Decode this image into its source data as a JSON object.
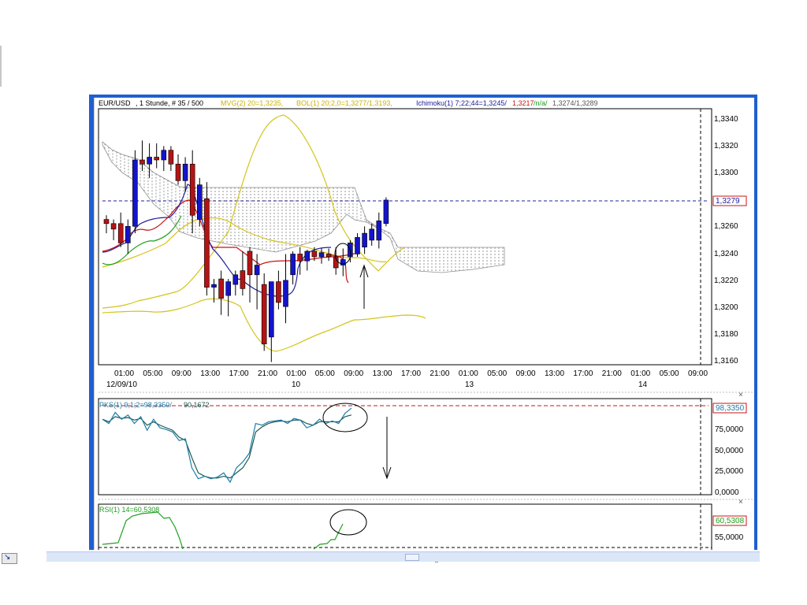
{
  "main_header": {
    "symbol": "EUR/USD",
    "timeframe": ", 1 Stunde, # 35 / 500",
    "mvg": "MVG(2) 20=1,3235,",
    "bol": "BOL(1) 20;2,0=1,3277/1,3193,",
    "ichi_a": "Ichimoku(1) 7;22;44=1,3245/",
    "ichi_b": "1,3217",
    "ichi_c": "/n/a/",
    "ichi_d": "1,3274/1,3289"
  },
  "main_axis": {
    "ticks": [
      "1,3340",
      "1,3320",
      "1,3300",
      "1,3280",
      "1,3260",
      "1,3240",
      "1,3220",
      "1,3200",
      "1,3180",
      "1,3160"
    ],
    "current_price": "1,3279"
  },
  "time_axis": {
    "labels": [
      "01:00",
      "05:00",
      "09:00",
      "13:00",
      "17:00",
      "21:00",
      "01:00",
      "05:00",
      "09:00",
      "13:00",
      "17:00",
      "21:00",
      "01:00",
      "05:00",
      "09:00",
      "13:00",
      "17:00",
      "21:00",
      "01:00",
      "05:00",
      "09:00"
    ],
    "dates": [
      "12/09/10",
      "10",
      "13",
      "14"
    ]
  },
  "pks_panel": {
    "label": "PKS(1) 9;1;2=98,3350/",
    "label_b": "90,1672",
    "ticks": [
      "75,0000",
      "50,0000",
      "25,0000",
      "0,0000"
    ],
    "current": "98,3350"
  },
  "rsi_panel": {
    "label": "RSI(1) 14=60,5308",
    "ticks": [
      "55,0000"
    ],
    "current": "60,5308"
  },
  "colors": {
    "frame": "#1f5fd0",
    "bull": "#1414c8",
    "bear": "#b41414",
    "bollinger": "#d4c41c",
    "ichimoku_cloud": "#909090",
    "tenkan": "#2020a0",
    "kijun": "#c81414",
    "chikou": "#20a020",
    "pks_fast": "#1e7ea8",
    "pks_slow": "#1e5a50",
    "rsi": "#20a020"
  },
  "chart_data": {
    "type": "candlestick",
    "instrument": "EUR/USD",
    "timeframe": "1 Stunde",
    "ylim": [
      1.316,
      1.3345
    ],
    "candles_ohlc": [
      [
        1.3265,
        1.3268,
        1.3255,
        1.3262
      ],
      [
        1.3262,
        1.3265,
        1.325,
        1.3258
      ],
      [
        1.3262,
        1.327,
        1.3245,
        1.3248
      ],
      [
        1.3248,
        1.3265,
        1.324,
        1.326
      ],
      [
        1.326,
        1.3315,
        1.3255,
        1.3308
      ],
      [
        1.3308,
        1.3322,
        1.33,
        1.3305
      ],
      [
        1.3305,
        1.332,
        1.3295,
        1.331
      ],
      [
        1.331,
        1.332,
        1.3302,
        1.3308
      ],
      [
        1.3308,
        1.3318,
        1.33,
        1.3315
      ],
      [
        1.3315,
        1.3318,
        1.33,
        1.3305
      ],
      [
        1.3305,
        1.3312,
        1.329,
        1.3293
      ],
      [
        1.3293,
        1.331,
        1.3285,
        1.3305
      ],
      [
        1.3305,
        1.3315,
        1.3255,
        1.3268
      ],
      [
        1.3265,
        1.3295,
        1.326,
        1.329
      ],
      [
        1.328,
        1.3292,
        1.321,
        1.3216
      ],
      [
        1.3216,
        1.3222,
        1.3205,
        1.3218
      ],
      [
        1.3222,
        1.3228,
        1.3196,
        1.3208
      ],
      [
        1.321,
        1.3222,
        1.3195,
        1.322
      ],
      [
        1.3218,
        1.3228,
        1.321,
        1.3225
      ],
      [
        1.3228,
        1.3242,
        1.321,
        1.3215
      ],
      [
        1.3242,
        1.3245,
        1.3205,
        1.3225
      ],
      [
        1.3225,
        1.324,
        1.32,
        1.3232
      ],
      [
        1.3218,
        1.3226,
        1.317,
        1.3175
      ],
      [
        1.318,
        1.3205,
        1.3162,
        1.322
      ],
      [
        1.322,
        1.3228,
        1.32,
        1.3205
      ],
      [
        1.3202,
        1.324,
        1.319,
        1.3221
      ],
      [
        1.3225,
        1.3242,
        1.3218,
        1.324
      ],
      [
        1.324,
        1.3245,
        1.3225,
        1.3235
      ],
      [
        1.3235,
        1.3243,
        1.3228,
        1.3242
      ],
      [
        1.3242,
        1.3245,
        1.3235,
        1.3238
      ],
      [
        1.3238,
        1.3244,
        1.3233,
        1.3241
      ],
      [
        1.324,
        1.3244,
        1.3235,
        1.3238
      ],
      [
        1.3238,
        1.3245,
        1.3225,
        1.323
      ],
      [
        1.3232,
        1.3244,
        1.3224,
        1.3236
      ],
      [
        1.3238,
        1.325,
        1.3234,
        1.3248
      ],
      [
        1.324,
        1.3255,
        1.3238,
        1.3252
      ],
      [
        1.3245,
        1.326,
        1.324,
        1.3255
      ],
      [
        1.325,
        1.3262,
        1.3246,
        1.3258
      ],
      [
        1.325,
        1.327,
        1.3244,
        1.3264
      ],
      [
        1.3262,
        1.3281,
        1.326,
        1.3279
      ]
    ],
    "pks_fast": [
      85,
      80,
      93,
      85,
      90,
      80,
      88,
      72,
      85,
      75,
      73,
      70,
      60,
      62,
      28,
      15,
      18,
      15,
      17,
      22,
      11,
      28,
      35,
      45,
      80,
      78,
      82,
      83,
      84,
      80,
      86,
      84,
      75,
      78,
      85,
      80,
      83,
      80,
      92,
      98
    ],
    "pks_slow": [
      85,
      82,
      88,
      86,
      87,
      84,
      86,
      78,
      82,
      78,
      75,
      72,
      64,
      60,
      40,
      22,
      18,
      16,
      16,
      18,
      16,
      22,
      28,
      40,
      70,
      76,
      80,
      82,
      83,
      82,
      84,
      84,
      80,
      78,
      82,
      82,
      82,
      82,
      88,
      90
    ]
  }
}
